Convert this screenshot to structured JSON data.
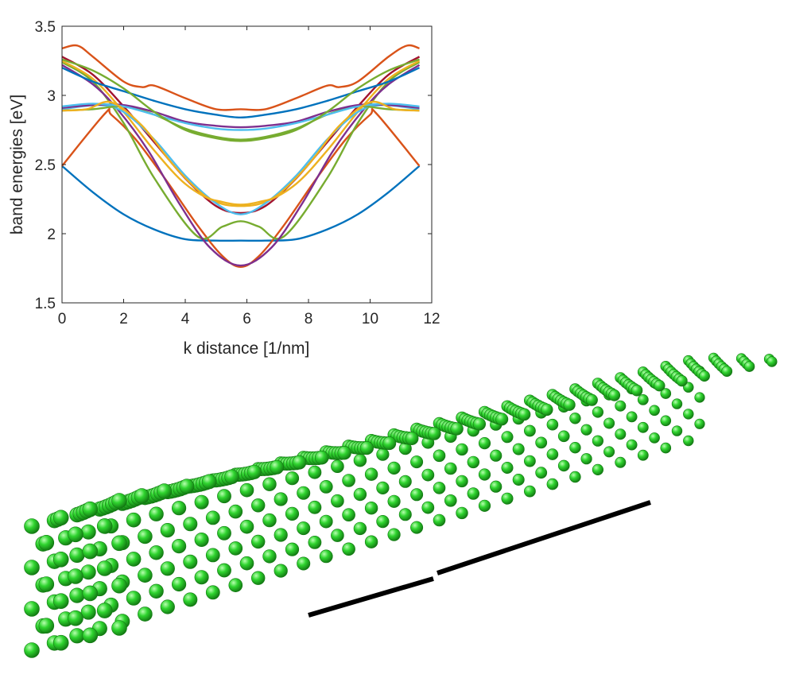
{
  "chart_data": {
    "type": "line",
    "title": "",
    "xlabel": "k distance [1/nm]",
    "ylabel": "band energies [eV]",
    "xlim": [
      0,
      12
    ],
    "ylim": [
      1.5,
      3.5
    ],
    "xticks": [
      0,
      2,
      4,
      6,
      8,
      10,
      12
    ],
    "yticks": [
      1.5,
      2,
      2.5,
      3,
      3.5
    ],
    "ytick_labels": [
      "1.5",
      "2",
      "2.5",
      "3",
      "3.5"
    ],
    "grid": false,
    "box": true,
    "series": [
      {
        "color": "#0072BD",
        "x": [
          0,
          1,
          2,
          3,
          4,
          5,
          5.8,
          6.6,
          7.6,
          8.6,
          9.6,
          10.6,
          11.6
        ],
        "y": [
          2.49,
          2.3,
          2.14,
          2.03,
          1.96,
          1.95,
          1.95,
          1.95,
          1.96,
          2.03,
          2.14,
          2.3,
          2.49
        ]
      },
      {
        "color": "#D95319",
        "x": [
          0,
          1.4,
          1.6,
          2.4,
          3.4,
          4.4,
          5.2,
          5.8,
          6.4,
          7.2,
          8.2,
          9.2,
          10,
          10.2,
          11.6
        ],
        "y": [
          2.49,
          2.87,
          2.86,
          2.68,
          2.38,
          2.06,
          1.84,
          1.76,
          1.84,
          2.06,
          2.38,
          2.68,
          2.86,
          2.87,
          2.49
        ]
      },
      {
        "color": "#77AC30",
        "x": [
          0,
          1,
          2,
          3,
          4.4,
          5.2,
          5.8,
          6.4,
          7.2,
          8.6,
          9.6,
          10.6,
          11.6
        ],
        "y": [
          3.24,
          3.1,
          2.8,
          2.4,
          1.98,
          2.05,
          2.09,
          2.05,
          1.98,
          2.4,
          2.8,
          3.1,
          3.24
        ]
      },
      {
        "color": "#7E2F8E",
        "x": [
          0,
          1,
          1.8,
          2.8,
          3.8,
          4.8,
          5.8,
          6.8,
          7.8,
          8.8,
          9.8,
          10.6,
          11.6
        ],
        "y": [
          3.22,
          3.08,
          2.9,
          2.6,
          2.22,
          1.9,
          1.77,
          1.9,
          2.22,
          2.6,
          2.9,
          3.08,
          3.22
        ]
      },
      {
        "color": "#A2142F",
        "x": [
          0,
          1,
          2,
          3,
          4,
          5,
          5.8,
          6.6,
          7.6,
          8.6,
          9.6,
          10.6,
          11.6
        ],
        "y": [
          3.28,
          3.15,
          2.92,
          2.66,
          2.4,
          2.2,
          2.15,
          2.2,
          2.4,
          2.66,
          2.92,
          3.15,
          3.28
        ]
      },
      {
        "color": "#EDB120",
        "x": [
          0,
          1,
          2,
          3,
          4,
          5,
          5.8,
          6.6,
          7.6,
          8.6,
          9.6,
          10.6,
          11.6
        ],
        "y": [
          3.25,
          3.12,
          2.88,
          2.6,
          2.36,
          2.23,
          2.2,
          2.23,
          2.36,
          2.6,
          2.88,
          3.12,
          3.25
        ]
      },
      {
        "color": "#4DBEEE",
        "x": [
          0,
          1.2,
          2,
          3,
          4,
          5,
          5.8,
          6.6,
          7.6,
          8.6,
          9.6,
          10.4,
          11.6
        ],
        "y": [
          2.9,
          2.93,
          2.88,
          2.68,
          2.42,
          2.22,
          2.14,
          2.22,
          2.42,
          2.68,
          2.88,
          2.93,
          2.9
        ]
      },
      {
        "color": "#0072BD",
        "x": [
          0,
          1,
          2,
          3,
          4,
          5,
          5.8,
          6.6,
          7.6,
          8.6,
          9.6,
          10.6,
          11.6
        ],
        "y": [
          3.2,
          3.1,
          3.03,
          2.96,
          2.9,
          2.86,
          2.84,
          2.86,
          2.9,
          2.96,
          3.03,
          3.1,
          3.2
        ]
      },
      {
        "color": "#D95319",
        "x": [
          0,
          0.5,
          1,
          2,
          2.6,
          3,
          4,
          5,
          5.8,
          6.6,
          7.6,
          8.6,
          9,
          9.6,
          10.6,
          11.2,
          11.6
        ],
        "y": [
          3.34,
          3.36,
          3.28,
          3.1,
          3.06,
          3.07,
          2.98,
          2.9,
          2.9,
          2.9,
          2.98,
          3.07,
          3.06,
          3.1,
          3.28,
          3.36,
          3.34
        ]
      },
      {
        "color": "#77AC30",
        "x": [
          0,
          1,
          2,
          3,
          4,
          5,
          5.8,
          6.6,
          7.6,
          8.6,
          9.6,
          10.6,
          11.6
        ],
        "y": [
          2.89,
          2.9,
          2.92,
          2.86,
          2.76,
          2.7,
          2.68,
          2.7,
          2.76,
          2.86,
          2.92,
          2.9,
          2.89
        ]
      },
      {
        "color": "#7E2F8E",
        "x": [
          0,
          1,
          2,
          3,
          4,
          5,
          5.8,
          6.6,
          7.6,
          8.6,
          9.6,
          10.6,
          11.6
        ],
        "y": [
          2.91,
          2.93,
          2.93,
          2.88,
          2.81,
          2.78,
          2.77,
          2.78,
          2.81,
          2.88,
          2.93,
          2.93,
          2.91
        ]
      },
      {
        "color": "#4DBEEE",
        "x": [
          0,
          1,
          2,
          3,
          4,
          5,
          5.8,
          6.6,
          7.6,
          8.6,
          9.6,
          10.6,
          11.6
        ],
        "y": [
          2.92,
          2.94,
          2.92,
          2.86,
          2.8,
          2.76,
          2.75,
          2.76,
          2.8,
          2.86,
          2.92,
          2.94,
          2.92
        ]
      },
      {
        "color": "#77AC30",
        "x": [
          0,
          1,
          2,
          3,
          4,
          5,
          5.8,
          6.6,
          7.6,
          8.6,
          9.6,
          10.6,
          11.6
        ],
        "y": [
          3.26,
          3.18,
          3.05,
          2.88,
          2.75,
          2.69,
          2.67,
          2.69,
          2.75,
          2.88,
          3.05,
          3.18,
          3.26
        ]
      },
      {
        "color": "#EDB120",
        "x": [
          0,
          0.8,
          1.6,
          2.6,
          3.6,
          4.6,
          5.2,
          5.8,
          6.4,
          7,
          8,
          9,
          10,
          10.8,
          11.6
        ],
        "y": [
          2.89,
          2.9,
          2.95,
          2.78,
          2.5,
          2.28,
          2.23,
          2.21,
          2.23,
          2.28,
          2.5,
          2.78,
          2.95,
          2.9,
          2.89
        ]
      }
    ]
  },
  "nanowire": {
    "atom_color": "#2fd42f",
    "atom_highlight": "#b8ffb0",
    "atom_shadow": "#137a13",
    "scale_bar_color": "#000000"
  }
}
